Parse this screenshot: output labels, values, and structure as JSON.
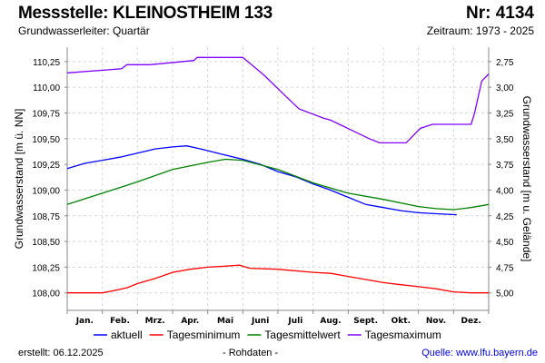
{
  "header": {
    "title": "Messstelle: KLEINOSTHEIM 133",
    "nr": "Nr: 4134",
    "aquifer": "Grundwasserleiter: Quartär",
    "period": "Zeitraum: 1973 - 2025"
  },
  "footer": {
    "created": "erstellt:  06.12.2025",
    "raw": "- Rohdaten -",
    "source": "Quelle: www.lfu.bayern.de"
  },
  "chart_data": {
    "type": "line",
    "ylabel": "Grundwasserstand [m ü. NN]",
    "y2label": "Grundwasserstand [m u. Gelände]",
    "ylim": [
      107.83,
      110.39
    ],
    "yticks": [
      108.0,
      108.25,
      108.5,
      108.75,
      109.0,
      109.25,
      109.5,
      109.75,
      110.0,
      110.25
    ],
    "ytick_labels": [
      "108,00",
      "108,25",
      "108,50",
      "108,75",
      "109,00",
      "109,25",
      "109,50",
      "109,75",
      "110,00",
      "110,25"
    ],
    "y2_reference": 113.0,
    "y2tick_labels": [
      "5,00",
      "4,75",
      "4,50",
      "4,25",
      "4,00",
      "3,75",
      "3,50",
      "3,25",
      "3,00",
      "2,75"
    ],
    "xlim": [
      0,
      12
    ],
    "categories": [
      "Jan.",
      "Feb.",
      "Mrz.",
      "Apr.",
      "Mai",
      "Juni",
      "Juli",
      "Aug.",
      "Sept.",
      "Okt.",
      "Nov.",
      "Dez."
    ],
    "grid": true,
    "legend_position": "bottom",
    "series": [
      {
        "name": "aktuell",
        "color": "#0000ff",
        "x": [
          0,
          0.5,
          1,
          1.5,
          2,
          2.5,
          3,
          3.4,
          3.8,
          4.5,
          5,
          5.5,
          6,
          6.5,
          7,
          7.5,
          8,
          8.5,
          9,
          9.5,
          10,
          10.5,
          11.09
        ],
        "y": [
          109.21,
          109.26,
          109.29,
          109.32,
          109.36,
          109.4,
          109.42,
          109.43,
          109.4,
          109.34,
          109.3,
          109.25,
          109.18,
          109.13,
          109.06,
          109.0,
          108.93,
          108.86,
          108.83,
          108.8,
          108.78,
          108.77,
          108.76
        ]
      },
      {
        "name": "Tagesminimum",
        "color": "#ff0000",
        "x": [
          0,
          1,
          1.3,
          1.7,
          2,
          2.5,
          3,
          3.5,
          4,
          4.5,
          4.9,
          5.2,
          6,
          7,
          7.5,
          8,
          8.5,
          9,
          9.5,
          10,
          10.5,
          11,
          11.5,
          12
        ],
        "y": [
          108.0,
          108.0,
          108.02,
          108.05,
          108.09,
          108.14,
          108.2,
          108.23,
          108.25,
          108.26,
          108.27,
          108.24,
          108.23,
          108.2,
          108.19,
          108.16,
          108.13,
          108.1,
          108.08,
          108.06,
          108.04,
          108.01,
          108.0,
          108.0
        ]
      },
      {
        "name": "Tagesmittelwert",
        "color": "#008000",
        "x": [
          0,
          1,
          2,
          3,
          4,
          4.5,
          5,
          6,
          7,
          8,
          9,
          10,
          10.5,
          11,
          11.5,
          12
        ],
        "y": [
          108.86,
          108.97,
          109.08,
          109.2,
          109.27,
          109.3,
          109.29,
          109.2,
          109.07,
          108.97,
          108.91,
          108.84,
          108.82,
          108.81,
          108.83,
          108.86
        ],
        "note": ""
      },
      {
        "name": "Tagesmaximum",
        "color": "#8000ff",
        "x": [
          0,
          1.55,
          1.7,
          2.35,
          3.6,
          3.7,
          5.0,
          5.6,
          6.2,
          6.6,
          7.3,
          7.5,
          8.3,
          8.6,
          8.9,
          9.2,
          9.65,
          10.05,
          10.4,
          10.6,
          10.65,
          11.5,
          11.6,
          11.8,
          12
        ],
        "y": [
          110.14,
          110.18,
          110.22,
          110.22,
          110.26,
          110.29,
          110.29,
          110.12,
          109.92,
          109.79,
          109.7,
          109.68,
          109.55,
          109.5,
          109.46,
          109.46,
          109.46,
          109.6,
          109.64,
          109.64,
          109.64,
          109.64,
          109.75,
          110.06,
          110.13
        ]
      }
    ]
  }
}
